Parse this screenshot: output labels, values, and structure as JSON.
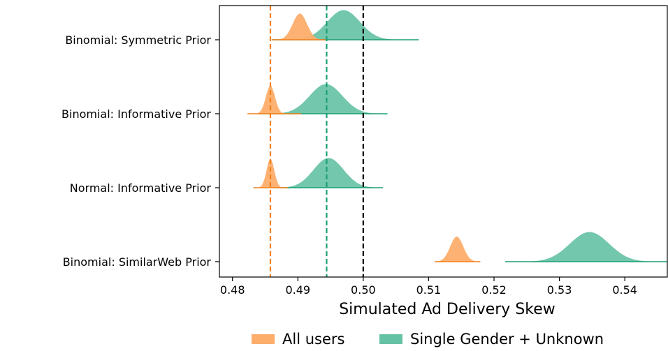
{
  "chart_data": {
    "type": "ridgeline",
    "xlabel": "Simulated Ad Delivery Skew",
    "xlim": [
      0.478,
      0.5465
    ],
    "xticks": [
      0.48,
      0.49,
      0.5,
      0.51,
      0.52,
      0.53,
      0.54
    ],
    "xtick_labels": [
      "0.48",
      "0.49",
      "0.50",
      "0.51",
      "0.52",
      "0.53",
      "0.54"
    ],
    "categories": [
      "Binomial: Symmetric Prior",
      "Binomial: Informative Prior",
      "Normal: Informative Prior",
      "Binomial: SimilarWeb Prior"
    ],
    "series": [
      {
        "name": "All users",
        "color": "#fdae6b",
        "edge_color": "#f47f18",
        "distributions": [
          {
            "center": 0.4903,
            "sd": 0.0011,
            "min": 0.486,
            "max": 0.4945,
            "height": 0.75
          },
          {
            "center": 0.4858,
            "sd": 0.0007,
            "min": 0.4823,
            "max": 0.4905,
            "height": 0.8
          },
          {
            "center": 0.4858,
            "sd": 0.0006,
            "min": 0.4832,
            "max": 0.4885,
            "height": 0.82
          },
          {
            "center": 0.5143,
            "sd": 0.001,
            "min": 0.5109,
            "max": 0.5179,
            "height": 0.72
          }
        ]
      },
      {
        "name": "Single Gender + Unknown",
        "color": "#66c2a5",
        "edge_color": "#1b9e77",
        "distributions": [
          {
            "center": 0.497,
            "sd": 0.0025,
            "min": 0.4862,
            "max": 0.5085,
            "height": 0.85
          },
          {
            "center": 0.4943,
            "sd": 0.0025,
            "min": 0.484,
            "max": 0.5037,
            "height": 0.85
          },
          {
            "center": 0.4947,
            "sd": 0.0023,
            "min": 0.4862,
            "max": 0.503,
            "height": 0.85
          },
          {
            "center": 0.5346,
            "sd": 0.003,
            "min": 0.5217,
            "max": 0.5465,
            "height": 0.85
          }
        ]
      }
    ],
    "vlines": [
      {
        "x": 0.4858,
        "color": "#f47f18",
        "style": "dashed"
      },
      {
        "x": 0.4944,
        "color": "#1b9e77",
        "style": "dashed"
      },
      {
        "x": 0.5,
        "color": "#000000",
        "style": "dashed"
      }
    ],
    "legend": {
      "placement": "bottom-center",
      "entries": [
        "All users",
        "Single Gender + Unknown"
      ]
    }
  }
}
